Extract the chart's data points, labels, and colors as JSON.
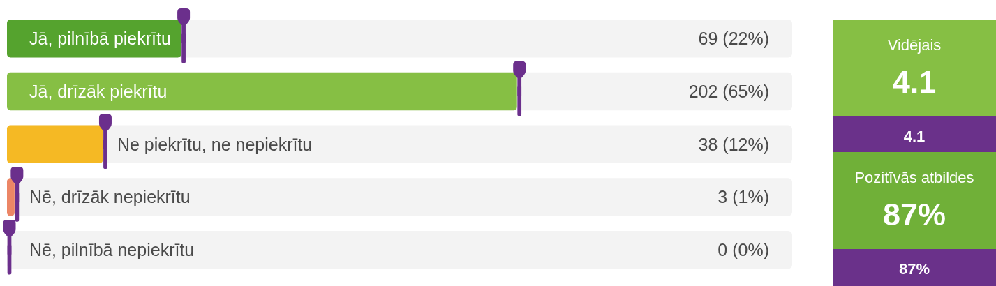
{
  "chart_data": [
    {
      "type": "bar",
      "orientation": "horizontal",
      "tick_labels": "y",
      "categories": [
        "Jā, pilnībā piekrītu",
        "Jā, drīzāk piekrītu",
        "Ne piekrītu, ne nepiekrītu",
        "Nē, drīzāk nepiekrītu",
        "Nē, pilnībā nepiekrītu"
      ],
      "xlim": [
        0,
        311
      ],
      "series": [
        {
          "type": "bar",
          "values": [
            69,
            202,
            38,
            3,
            0
          ],
          "colors": [
            "#55a32e",
            "#86bf44",
            "#f5b924",
            "#ec8666",
            "#e0463c"
          ],
          "value_labels": [
            "69 (22%)",
            "202 (65%)",
            "38 (12%)",
            "3 (1%)",
            "0 (0%)"
          ]
        },
        {
          "type": "scatter",
          "color": "#6b2f8c",
          "values": [
            69,
            202,
            38,
            3,
            0
          ]
        }
      ]
    },
    {
      "type": "other",
      "annotations": [
        "Vidējais",
        "4.1",
        "4.1",
        "Pozitīvās atbildes",
        "87%",
        "87%"
      ]
    }
  ]
}
